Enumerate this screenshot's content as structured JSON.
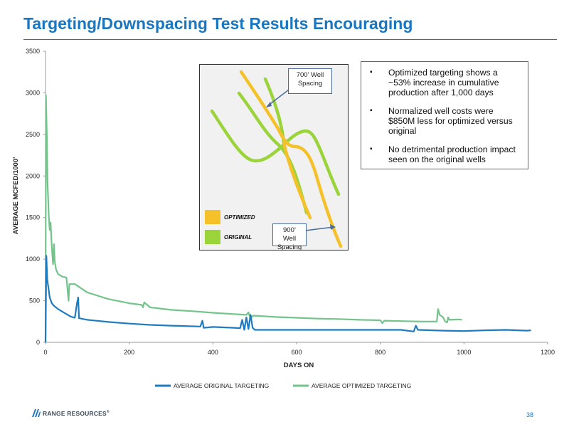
{
  "slide": {
    "title": "Targeting/Downspacing Test Results Encouraging",
    "page_number": "38",
    "logo_text": "RANGE RESOURCES",
    "logo_mark": "®"
  },
  "colors": {
    "title_blue": "#1976c0",
    "original_series": "#1f7bc0",
    "optimized_series": "#72c48b",
    "inset_optimized": "#f5c12b",
    "inset_original": "#9bd33a"
  },
  "callout": {
    "bullets": [
      "Optimized targeting shows a ~53% increase in cumulative production after 1,000 days",
      "Normalized well costs were $850M less for optimized versus original",
      "No detrimental production impact seen on the original wells"
    ]
  },
  "inset": {
    "label_700": "700’ Well Spacing",
    "label_900": "900’ Well Spacing",
    "legend_optimized": "OPTIMIZED",
    "legend_original": "ORIGINAL"
  },
  "chart_data": {
    "type": "line",
    "title": "",
    "xlabel": "DAYS ON",
    "ylabel": "AVERAGE MCFED/1000'",
    "xlim": [
      0,
      1200
    ],
    "ylim": [
      0,
      3500
    ],
    "x_ticks": [
      0,
      200,
      400,
      600,
      800,
      1000,
      1200
    ],
    "y_ticks": [
      0,
      500,
      1000,
      1500,
      2000,
      2500,
      3000,
      3500
    ],
    "grid": false,
    "legend_position": "bottom",
    "series": [
      {
        "name": "AVERAGE ORIGINAL TARGETING",
        "color": "#1f7bc0",
        "points": [
          [
            0,
            0
          ],
          [
            2,
            1040
          ],
          [
            4,
            760
          ],
          [
            6,
            690
          ],
          [
            10,
            540
          ],
          [
            15,
            470
          ],
          [
            20,
            440
          ],
          [
            30,
            400
          ],
          [
            40,
            370
          ],
          [
            50,
            340
          ],
          [
            60,
            310
          ],
          [
            70,
            295
          ],
          [
            75,
            460
          ],
          [
            78,
            540
          ],
          [
            80,
            290
          ],
          [
            100,
            270
          ],
          [
            150,
            245
          ],
          [
            200,
            225
          ],
          [
            250,
            210
          ],
          [
            300,
            200
          ],
          [
            370,
            190
          ],
          [
            375,
            260
          ],
          [
            378,
            175
          ],
          [
            400,
            185
          ],
          [
            450,
            175
          ],
          [
            465,
            170
          ],
          [
            470,
            270
          ],
          [
            475,
            150
          ],
          [
            480,
            300
          ],
          [
            485,
            160
          ],
          [
            490,
            330
          ],
          [
            495,
            175
          ],
          [
            500,
            150
          ],
          [
            600,
            150
          ],
          [
            700,
            150
          ],
          [
            800,
            150
          ],
          [
            850,
            150
          ],
          [
            880,
            130
          ],
          [
            885,
            200
          ],
          [
            890,
            150
          ],
          [
            950,
            140
          ],
          [
            1000,
            135
          ],
          [
            1050,
            145
          ],
          [
            1100,
            150
          ],
          [
            1150,
            140
          ],
          [
            1160,
            145
          ]
        ]
      },
      {
        "name": "AVERAGE OPTIMIZED TARGETING",
        "color": "#72c48b",
        "points": [
          [
            0,
            0
          ],
          [
            1,
            2970
          ],
          [
            3,
            2500
          ],
          [
            5,
            1900
          ],
          [
            8,
            1500
          ],
          [
            10,
            1350
          ],
          [
            12,
            1440
          ],
          [
            15,
            1150
          ],
          [
            18,
            940
          ],
          [
            20,
            1180
          ],
          [
            22,
            980
          ],
          [
            25,
            880
          ],
          [
            30,
            820
          ],
          [
            40,
            790
          ],
          [
            50,
            780
          ],
          [
            55,
            500
          ],
          [
            57,
            700
          ],
          [
            70,
            700
          ],
          [
            100,
            600
          ],
          [
            150,
            520
          ],
          [
            200,
            470
          ],
          [
            230,
            450
          ],
          [
            233,
            420
          ],
          [
            236,
            480
          ],
          [
            250,
            420
          ],
          [
            300,
            390
          ],
          [
            350,
            375
          ],
          [
            400,
            355
          ],
          [
            450,
            340
          ],
          [
            480,
            330
          ],
          [
            485,
            360
          ],
          [
            490,
            280
          ],
          [
            495,
            320
          ],
          [
            500,
            320
          ],
          [
            550,
            305
          ],
          [
            600,
            295
          ],
          [
            650,
            285
          ],
          [
            700,
            280
          ],
          [
            750,
            270
          ],
          [
            800,
            265
          ],
          [
            805,
            230
          ],
          [
            810,
            260
          ],
          [
            850,
            255
          ],
          [
            900,
            250
          ],
          [
            935,
            250
          ],
          [
            938,
            400
          ],
          [
            942,
            330
          ],
          [
            950,
            300
          ],
          [
            955,
            250
          ],
          [
            960,
            240
          ],
          [
            962,
            300
          ],
          [
            965,
            270
          ],
          [
            990,
            275
          ],
          [
            995,
            270
          ]
        ]
      }
    ]
  }
}
